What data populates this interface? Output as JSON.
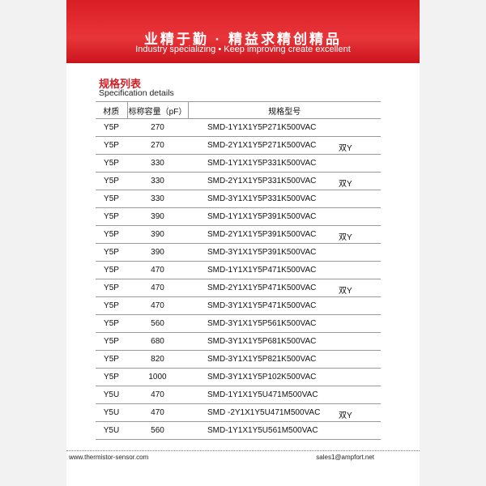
{
  "header": {
    "slogan": "业精于勤 · 精益求精创精品",
    "slogan_en": "Industry specializing • Keep improving create excellent"
  },
  "section": {
    "title": "规格列表",
    "subtitle": "Specification details"
  },
  "table": {
    "columns": [
      "材质",
      "标称容量（pF）",
      "规格型号"
    ],
    "rows": [
      {
        "material": "Y5P",
        "capacitance": "270",
        "model": "SMD-1Y1X1Y5P271K500VAC"
      },
      {
        "material": "Y5P",
        "capacitance": "270",
        "model": "SMD-2Y1X1Y5P271K500VAC",
        "note": "双Y"
      },
      {
        "material": "Y5P",
        "capacitance": "330",
        "model": "SMD-1Y1X1Y5P331K500VAC"
      },
      {
        "material": "Y5P",
        "capacitance": "330",
        "model": "SMD-2Y1X1Y5P331K500VAC",
        "note": "双Y"
      },
      {
        "material": "Y5P",
        "capacitance": "330",
        "model": "SMD-3Y1X1Y5P331K500VAC"
      },
      {
        "material": "Y5P",
        "capacitance": "390",
        "model": "SMD-1Y1X1Y5P391K500VAC"
      },
      {
        "material": "Y5P",
        "capacitance": "390",
        "model": "SMD-2Y1X1Y5P391K500VAC",
        "note": "双Y"
      },
      {
        "material": "Y5P",
        "capacitance": "390",
        "model": "SMD-3Y1X1Y5P391K500VAC"
      },
      {
        "material": "Y5P",
        "capacitance": "470",
        "model": "SMD-1Y1X1Y5P471K500VAC"
      },
      {
        "material": "Y5P",
        "capacitance": "470",
        "model": "SMD-2Y1X1Y5P471K500VAC",
        "note": "双Y"
      },
      {
        "material": "Y5P",
        "capacitance": "470",
        "model": "SMD-3Y1X1Y5P471K500VAC"
      },
      {
        "material": "Y5P",
        "capacitance": "560",
        "model": "SMD-3Y1X1Y5P561K500VAC"
      },
      {
        "material": "Y5P",
        "capacitance": "680",
        "model": "SMD-3Y1X1Y5P681K500VAC"
      },
      {
        "material": "Y5P",
        "capacitance": "820",
        "model": "SMD-3Y1X1Y5P821K500VAC"
      },
      {
        "material": "Y5P",
        "capacitance": "1000",
        "model": "SMD-3Y1X1Y5P102K500VAC"
      },
      {
        "material": "Y5U",
        "capacitance": "470",
        "model": "SMD-1Y1X1Y5U471M500VAC"
      },
      {
        "material": "Y5U",
        "capacitance": "470",
        "model": "SMD -2Y1X1Y5U471M500VAC",
        "note": "双Y"
      },
      {
        "material": "Y5U",
        "capacitance": "560",
        "model": "SMD-1Y1X1Y5U561M500VAC"
      }
    ]
  },
  "footer": {
    "website": "www.thermistor-sensor.com",
    "email": "sales1@ampfort.net"
  }
}
